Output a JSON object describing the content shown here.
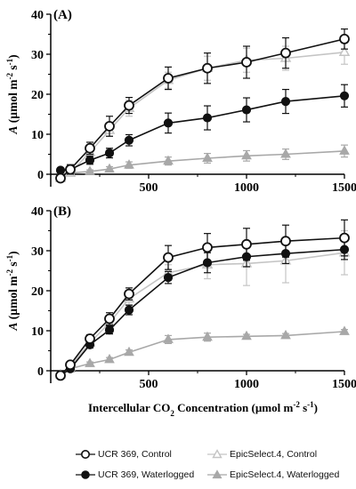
{
  "chart_data": [
    {
      "type": "line",
      "panel_label": "(A)",
      "ylabel_parts": [
        "A",
        " (µmol m",
        "-2",
        " s",
        "-1",
        ")"
      ],
      "ylim": [
        0,
        40
      ],
      "yticks": [
        "0",
        "10",
        "20",
        "30",
        "40"
      ],
      "xlim": [
        0,
        1500
      ],
      "xticks": [
        "500",
        "1000",
        "1500"
      ],
      "x": [
        50,
        100,
        200,
        300,
        400,
        600,
        800,
        1000,
        1200,
        1500
      ],
      "series": [
        {
          "name": "UCR 369, Control",
          "color": "#111111",
          "marker": "circle-open",
          "values": [
            -1,
            1.2,
            6.5,
            12,
            17.2,
            24,
            26.5,
            28,
            30.3,
            33.8
          ],
          "errors": [
            0.8,
            1.2,
            1.5,
            2.5,
            2,
            2.8,
            3.8,
            4,
            3.8,
            2.5
          ]
        },
        {
          "name": "UCR 369, Waterlogged",
          "color": "#111111",
          "marker": "circle-filled",
          "values": [
            1,
            1.2,
            3.5,
            5.3,
            8.5,
            12.8,
            14.1,
            16.1,
            18.2,
            19.6
          ],
          "errors": [
            0.6,
            0.8,
            1,
            1.2,
            1.4,
            2.5,
            3,
            3,
            3,
            2.8
          ]
        },
        {
          "name": "EpicSelect.4, Control",
          "color": "#c4c4c4",
          "marker": "triangle-open",
          "values": [
            -1,
            0.3,
            5.5,
            11,
            16.5,
            23.5,
            26.5,
            28.5,
            29,
            30.5
          ],
          "errors": [
            0.5,
            0.5,
            1,
            1.5,
            2,
            2,
            3,
            3,
            3,
            3
          ]
        },
        {
          "name": "EpicSelect.4, Waterlogged",
          "color": "#a8a8a8",
          "marker": "triangle-filled",
          "values": [
            0,
            0.3,
            0.7,
            1.3,
            2.3,
            3.3,
            4,
            4.6,
            5,
            5.8
          ],
          "errors": [
            0.3,
            0.4,
            0.4,
            0.6,
            0.8,
            1,
            1.2,
            1.3,
            1.3,
            1.5
          ]
        }
      ]
    },
    {
      "type": "line",
      "panel_label": "(B)",
      "ylabel_parts": [
        "A",
        " (µmol m",
        "-2",
        " s",
        "-1",
        ")"
      ],
      "ylim": [
        0,
        40
      ],
      "yticks": [
        "0",
        "10",
        "20",
        "30",
        "40"
      ],
      "xlim": [
        0,
        1500
      ],
      "xticks": [
        "500",
        "1000",
        "1500"
      ],
      "xlabel_parts": [
        "Intercellular CO",
        "2",
        " Concentration (µmol m",
        "-2",
        " s",
        "-1",
        ")"
      ],
      "x": [
        50,
        100,
        200,
        300,
        400,
        600,
        800,
        1000,
        1200,
        1500
      ],
      "series": [
        {
          "name": "UCR 369, Control",
          "color": "#111111",
          "marker": "circle-open",
          "values": [
            -1.2,
            1.5,
            8,
            13,
            19.2,
            28.3,
            30.8,
            31.6,
            32.4,
            33.2
          ],
          "errors": [
            0.5,
            0.6,
            1,
            1.5,
            1.5,
            3,
            3.5,
            4,
            4,
            4.5
          ]
        },
        {
          "name": "UCR 369, Waterlogged",
          "color": "#111111",
          "marker": "circle-filled",
          "values": [
            -1.2,
            0.5,
            6.5,
            10.2,
            15.2,
            23.3,
            27,
            28.5,
            29.3,
            30.3
          ],
          "errors": [
            0.4,
            0.5,
            0.8,
            1,
            1.2,
            1.5,
            2.5,
            2.5,
            2.5,
            2.5
          ]
        },
        {
          "name": "EpicSelect.4, Control",
          "color": "#c4c4c4",
          "marker": "triangle-open",
          "values": [
            -1,
            1,
            7,
            12,
            18,
            24.5,
            26.5,
            26.8,
            27.5,
            29.5
          ],
          "errors": [
            0.5,
            0.5,
            1,
            1.5,
            1.5,
            2,
            3.5,
            5.5,
            5.5,
            5.5
          ]
        },
        {
          "name": "EpicSelect.4, Waterlogged",
          "color": "#a8a8a8",
          "marker": "triangle-filled",
          "values": [
            -1,
            0.5,
            1.8,
            2.8,
            4.6,
            7.8,
            8.4,
            8.6,
            8.8,
            9.8
          ],
          "errors": [
            0.3,
            0.3,
            0.4,
            0.5,
            0.6,
            1,
            1,
            0.5,
            0.5,
            0.5
          ]
        }
      ]
    }
  ],
  "legend": [
    {
      "label": "UCR 369, Control",
      "marker": "circle-open",
      "color": "#111111"
    },
    {
      "label": "UCR 369, Waterlogged",
      "marker": "circle-filled",
      "color": "#111111"
    },
    {
      "label": "EpicSelect.4, Control",
      "marker": "triangle-open",
      "color": "#c4c4c4"
    },
    {
      "label": "EpicSelect.4, Waterlogged",
      "marker": "triangle-filled",
      "color": "#a8a8a8"
    }
  ]
}
